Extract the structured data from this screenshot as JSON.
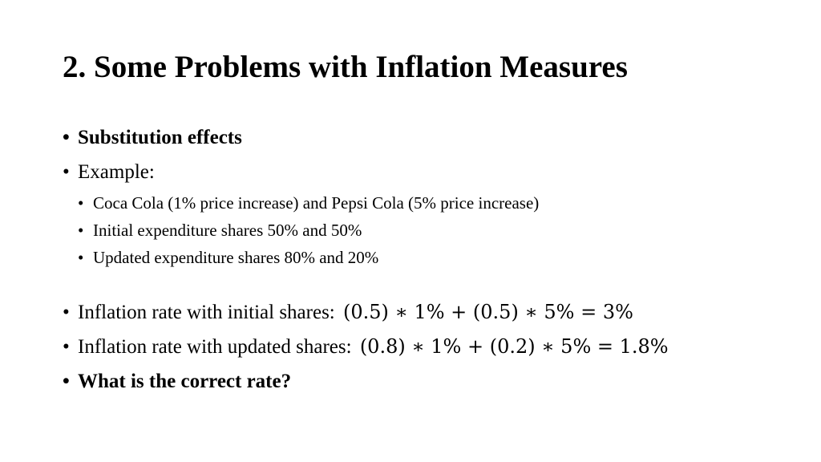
{
  "slide": {
    "title": "2. Some Problems with Inflation Measures",
    "bullets": {
      "substitution": "Substitution effects",
      "example": "Example:",
      "example_items": [
        "Coca Cola (1% price increase) and Pepsi Cola (5% price increase)",
        "Initial expenditure shares 50% and 50%",
        "Updated expenditure shares 80% and 20%"
      ],
      "initial_rate_label": "Inflation rate with initial shares:",
      "initial_rate_formula": "(0.5) ∗ 1% + (0.5) ∗ 5% = 3%",
      "updated_rate_label": "Inflation rate with updated shares:",
      "updated_rate_formula": "(0.8) ∗ 1% + (0.2) ∗ 5% = 1.8%",
      "question": "What is the correct rate?"
    }
  }
}
